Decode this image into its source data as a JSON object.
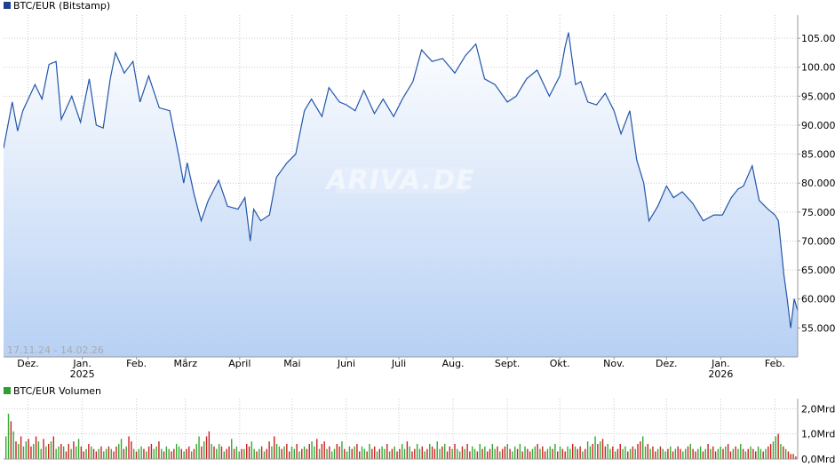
{
  "colors": {
    "price_line": "#2255aa",
    "area_top": "#ffffff",
    "area_bottom": "#b7d0f4",
    "legend_price": "#1f3f8f",
    "legend_volume": "#2e9e2e",
    "volume_up": "#33aa33",
    "volume_down": "#cc2222",
    "grid": "#c9c9c9"
  },
  "watermark": "ARIVA.DE",
  "chart_data": [
    {
      "type": "area",
      "title": "BTC/EUR (Bitstamp)",
      "date_range": "17.11.24 - 14.02.26",
      "ylim": [
        50000,
        109000
      ],
      "y_ticks": [
        55000,
        60000,
        65000,
        70000,
        75000,
        80000,
        85000,
        90000,
        95000,
        100000,
        105000
      ],
      "y_tick_labels": [
        "55.000",
        "60.000",
        "65.000",
        "70.000",
        "75.000",
        "80.000",
        "85.000",
        "90.000",
        "95.000",
        "100.000",
        "105.000"
      ],
      "x_ticks": [
        {
          "label": "Dez.",
          "date": "2024-12-01"
        },
        {
          "label": "Jan.",
          "date": "2025-01-01",
          "year": "2025"
        },
        {
          "label": "Feb.",
          "date": "2025-02-01"
        },
        {
          "label": "März",
          "date": "2025-03-01"
        },
        {
          "label": "April",
          "date": "2025-04-01"
        },
        {
          "label": "Mai",
          "date": "2025-05-01"
        },
        {
          "label": "Juni",
          "date": "2025-06-01"
        },
        {
          "label": "Juli",
          "date": "2025-07-01"
        },
        {
          "label": "Aug.",
          "date": "2025-08-01"
        },
        {
          "label": "Sept.",
          "date": "2025-09-01"
        },
        {
          "label": "Okt.",
          "date": "2025-10-01"
        },
        {
          "label": "Nov.",
          "date": "2025-11-01"
        },
        {
          "label": "Dez.",
          "date": "2025-12-01"
        },
        {
          "label": "Jan.",
          "date": "2026-01-01",
          "year": "2026"
        },
        {
          "label": "Feb.",
          "date": "2026-02-01"
        }
      ],
      "grid": true,
      "legend": "top-left",
      "series": [
        {
          "name": "BTC/EUR (Bitstamp)",
          "x": [
            "2024-11-17",
            "2024-11-22",
            "2024-11-25",
            "2024-11-28",
            "2024-12-05",
            "2024-12-09",
            "2024-12-13",
            "2024-12-17",
            "2024-12-20",
            "2024-12-26",
            "2024-12-31",
            "2025-01-05",
            "2025-01-09",
            "2025-01-13",
            "2025-01-17",
            "2025-01-20",
            "2025-01-25",
            "2025-01-30",
            "2025-02-03",
            "2025-02-08",
            "2025-02-14",
            "2025-02-20",
            "2025-02-25",
            "2025-02-28",
            "2025-03-02",
            "2025-03-06",
            "2025-03-10",
            "2025-03-14",
            "2025-03-20",
            "2025-03-25",
            "2025-03-31",
            "2025-04-04",
            "2025-04-07",
            "2025-04-09",
            "2025-04-13",
            "2025-04-18",
            "2025-04-22",
            "2025-04-28",
            "2025-05-03",
            "2025-05-08",
            "2025-05-12",
            "2025-05-18",
            "2025-05-22",
            "2025-05-28",
            "2025-06-01",
            "2025-06-06",
            "2025-06-11",
            "2025-06-17",
            "2025-06-22",
            "2025-06-28",
            "2025-07-03",
            "2025-07-09",
            "2025-07-14",
            "2025-07-20",
            "2025-07-26",
            "2025-08-02",
            "2025-08-08",
            "2025-08-14",
            "2025-08-19",
            "2025-08-25",
            "2025-09-01",
            "2025-09-06",
            "2025-09-12",
            "2025-09-18",
            "2025-09-25",
            "2025-10-01",
            "2025-10-04",
            "2025-10-06",
            "2025-10-10",
            "2025-10-13",
            "2025-10-17",
            "2025-10-22",
            "2025-10-27",
            "2025-11-01",
            "2025-11-05",
            "2025-11-10",
            "2025-11-14",
            "2025-11-18",
            "2025-11-21",
            "2025-11-26",
            "2025-12-01",
            "2025-12-05",
            "2025-12-10",
            "2025-12-16",
            "2025-12-22",
            "2025-12-28",
            "2026-01-02",
            "2026-01-07",
            "2026-01-11",
            "2026-01-14",
            "2026-01-19",
            "2026-01-23",
            "2026-01-28",
            "2026-02-01",
            "2026-02-03",
            "2026-02-05",
            "2026-02-06",
            "2026-02-08",
            "2026-02-10",
            "2026-02-12",
            "2026-02-14"
          ],
          "values": [
            86000,
            94000,
            89000,
            92500,
            97000,
            94500,
            100500,
            101000,
            91000,
            95000,
            90500,
            98000,
            90000,
            89500,
            98000,
            102500,
            99000,
            101000,
            94000,
            98500,
            93000,
            92500,
            85000,
            80000,
            83500,
            78000,
            73500,
            77000,
            80500,
            76000,
            75500,
            77500,
            70000,
            75500,
            73500,
            74500,
            81000,
            83500,
            85000,
            92500,
            94500,
            91500,
            96500,
            94000,
            93500,
            92500,
            96000,
            92000,
            94500,
            91500,
            94500,
            97500,
            103000,
            101000,
            101500,
            99000,
            102000,
            104000,
            98000,
            97000,
            94000,
            95000,
            98000,
            99500,
            95000,
            98500,
            103500,
            106000,
            97000,
            97500,
            94000,
            93500,
            95500,
            92500,
            88500,
            92500,
            84000,
            80000,
            73500,
            76000,
            79500,
            77500,
            78500,
            76500,
            73500,
            74500,
            74500,
            77500,
            79000,
            79500,
            83000,
            77000,
            75500,
            74500,
            73500,
            67500,
            64500,
            60000,
            55000,
            60000,
            58000
          ]
        }
      ]
    },
    {
      "type": "bar",
      "title": "BTC/EUR Volumen",
      "ylim": [
        0,
        2400000000
      ],
      "y_ticks": [
        0,
        1000000000,
        2000000000
      ],
      "y_tick_labels": [
        "0,0Mrd",
        "1,0Mrd",
        "2,0Mrd"
      ],
      "grid": true,
      "series": [
        {
          "name": "BTC/EUR Volumen",
          "values": [
            0.9,
            1.8,
            1.5,
            1.1,
            0.7,
            0.6,
            0.9,
            0.5,
            0.7,
            0.8,
            0.5,
            0.6,
            0.9,
            0.7,
            0.4,
            0.8,
            0.5,
            0.6,
            0.7,
            0.9,
            0.4,
            0.5,
            0.6,
            0.5,
            0.3,
            0.6,
            0.4,
            0.7,
            0.5,
            0.8,
            0.5,
            0.3,
            0.4,
            0.6,
            0.5,
            0.4,
            0.3,
            0.4,
            0.5,
            0.3,
            0.4,
            0.5,
            0.4,
            0.3,
            0.5,
            0.6,
            0.8,
            0.4,
            0.5,
            0.9,
            0.7,
            0.4,
            0.3,
            0.4,
            0.5,
            0.4,
            0.3,
            0.5,
            0.6,
            0.4,
            0.5,
            0.7,
            0.4,
            0.3,
            0.5,
            0.4,
            0.3,
            0.4,
            0.6,
            0.5,
            0.4,
            0.3,
            0.4,
            0.5,
            0.3,
            0.4,
            0.6,
            0.9,
            0.5,
            0.7,
            0.9,
            1.1,
            0.6,
            0.5,
            0.4,
            0.6,
            0.5,
            0.3,
            0.4,
            0.5,
            0.8,
            0.4,
            0.5,
            0.3,
            0.4,
            0.4,
            0.6,
            0.5,
            0.7,
            0.4,
            0.3,
            0.4,
            0.5,
            0.3,
            0.4,
            0.7,
            0.5,
            0.9,
            0.6,
            0.5,
            0.4,
            0.5,
            0.6,
            0.3,
            0.5,
            0.4,
            0.6,
            0.3,
            0.4,
            0.5,
            0.4,
            0.6,
            0.7,
            0.5,
            0.8,
            0.4,
            0.6,
            0.7,
            0.4,
            0.5,
            0.3,
            0.4,
            0.6,
            0.5,
            0.7,
            0.4,
            0.3,
            0.5,
            0.4,
            0.5,
            0.6,
            0.3,
            0.5,
            0.4,
            0.3,
            0.6,
            0.4,
            0.5,
            0.3,
            0.4,
            0.5,
            0.4,
            0.6,
            0.3,
            0.4,
            0.5,
            0.3,
            0.4,
            0.6,
            0.4,
            0.7,
            0.5,
            0.3,
            0.4,
            0.6,
            0.4,
            0.5,
            0.3,
            0.4,
            0.6,
            0.5,
            0.4,
            0.7,
            0.4,
            0.5,
            0.6,
            0.3,
            0.5,
            0.4,
            0.6,
            0.4,
            0.3,
            0.5,
            0.4,
            0.6,
            0.3,
            0.5,
            0.4,
            0.3,
            0.6,
            0.4,
            0.5,
            0.3,
            0.4,
            0.6,
            0.4,
            0.5,
            0.3,
            0.4,
            0.5,
            0.6,
            0.4,
            0.3,
            0.5,
            0.4,
            0.6,
            0.3,
            0.5,
            0.4,
            0.3,
            0.4,
            0.5,
            0.6,
            0.4,
            0.5,
            0.3,
            0.4,
            0.5,
            0.4,
            0.6,
            0.3,
            0.5,
            0.4,
            0.3,
            0.5,
            0.4,
            0.6,
            0.5,
            0.4,
            0.5,
            0.3,
            0.4,
            0.7,
            0.5,
            0.6,
            0.9,
            0.6,
            0.7,
            0.8,
            0.5,
            0.6,
            0.4,
            0.5,
            0.3,
            0.4,
            0.6,
            0.4,
            0.5,
            0.3,
            0.4,
            0.5,
            0.4,
            0.6,
            0.7,
            0.9,
            0.5,
            0.6,
            0.4,
            0.5,
            0.3,
            0.4,
            0.5,
            0.4,
            0.3,
            0.4,
            0.5,
            0.3,
            0.4,
            0.5,
            0.4,
            0.3,
            0.4,
            0.5,
            0.6,
            0.4,
            0.3,
            0.4,
            0.5,
            0.3,
            0.4,
            0.6,
            0.4,
            0.5,
            0.3,
            0.4,
            0.5,
            0.4,
            0.5,
            0.6,
            0.3,
            0.4,
            0.5,
            0.4,
            0.6,
            0.4,
            0.3,
            0.4,
            0.5,
            0.4,
            0.3,
            0.5,
            0.4,
            0.3,
            0.4,
            0.5,
            0.6,
            0.7,
            0.9,
            1.0,
            0.6,
            0.5,
            0.4,
            0.3,
            0.2,
            0.2,
            0.1
          ],
          "directions": [
            1,
            1,
            0,
            1,
            0,
            1,
            0,
            1,
            1,
            0,
            0,
            1,
            0,
            1,
            1,
            0,
            1,
            0,
            1,
            0,
            1,
            1,
            0,
            1,
            0,
            0,
            1,
            0,
            1,
            1,
            0,
            0,
            1,
            0,
            1,
            0,
            0,
            1,
            0,
            1,
            1,
            0,
            1,
            0,
            0,
            1,
            1,
            0,
            1,
            0,
            0,
            1,
            0,
            1,
            1,
            0,
            1,
            0,
            0,
            1,
            1,
            0,
            1,
            0,
            1,
            1,
            0,
            0,
            1,
            1,
            0,
            1,
            0,
            0,
            1,
            0,
            1,
            1,
            0,
            1,
            0,
            0,
            1,
            0,
            1,
            1,
            0,
            1,
            0,
            0,
            1,
            0,
            1,
            1,
            0,
            1,
            0,
            0,
            1,
            1,
            0,
            1,
            0,
            1,
            0,
            0,
            1,
            0,
            1,
            1,
            0,
            1,
            0,
            0,
            1,
            1,
            0,
            1,
            0,
            1,
            0,
            0,
            1,
            1,
            0,
            1,
            0,
            0,
            1,
            0,
            1,
            1,
            0,
            0,
            1,
            0,
            1,
            1,
            0,
            1,
            0,
            0,
            1,
            1,
            0,
            1,
            0,
            0,
            1,
            0,
            1,
            1,
            0,
            1,
            0,
            1,
            0,
            0,
            1,
            1,
            0,
            1,
            0,
            0,
            1,
            1,
            0,
            1,
            0,
            1,
            0,
            0,
            1,
            1,
            0,
            1,
            0,
            0,
            1,
            0,
            1,
            1,
            0,
            1,
            0,
            0,
            1,
            1,
            0,
            1,
            0,
            1,
            0,
            0,
            1,
            1,
            0,
            1,
            0,
            0,
            1,
            0,
            1,
            1,
            0,
            1,
            0,
            1,
            0,
            0,
            1,
            1,
            0,
            1,
            0,
            0,
            1,
            1,
            0,
            1,
            0,
            1,
            0,
            0,
            1,
            1,
            0,
            1,
            0,
            0,
            1,
            0,
            1,
            1,
            0,
            1,
            0,
            1,
            0,
            0,
            1,
            1,
            0,
            1,
            0,
            0,
            1,
            1,
            0,
            1,
            0,
            1,
            0,
            0,
            1,
            1,
            0,
            1,
            0,
            0,
            1,
            0,
            1,
            1,
            0,
            1,
            0,
            1,
            0,
            0,
            1,
            1,
            0,
            1,
            0,
            0,
            1,
            1,
            0,
            1,
            0,
            1,
            0,
            0,
            1,
            1,
            0,
            1,
            0,
            0,
            1,
            0,
            1,
            1,
            0,
            1,
            0,
            1,
            0,
            0,
            1,
            1,
            0,
            1,
            0,
            0,
            1,
            1,
            0,
            1,
            0,
            1,
            0
          ]
        }
      ]
    }
  ]
}
